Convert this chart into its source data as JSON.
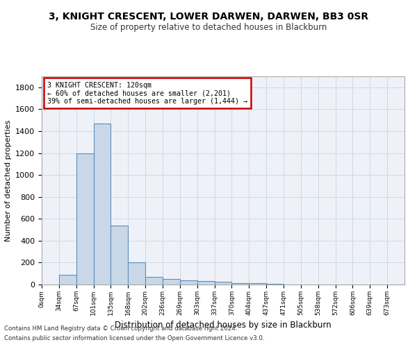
{
  "title": "3, KNIGHT CRESCENT, LOWER DARWEN, DARWEN, BB3 0SR",
  "subtitle": "Size of property relative to detached houses in Blackburn",
  "xlabel": "Distribution of detached houses by size in Blackburn",
  "ylabel": "Number of detached properties",
  "bin_labels": [
    "0sqm",
    "34sqm",
    "67sqm",
    "101sqm",
    "135sqm",
    "168sqm",
    "202sqm",
    "236sqm",
    "269sqm",
    "303sqm",
    "337sqm",
    "370sqm",
    "404sqm",
    "437sqm",
    "471sqm",
    "505sqm",
    "538sqm",
    "572sqm",
    "606sqm",
    "639sqm",
    "673sqm"
  ],
  "bar_values": [
    0,
    90,
    1200,
    1470,
    540,
    200,
    70,
    50,
    40,
    30,
    25,
    15,
    10,
    5,
    3,
    2,
    1,
    1,
    1,
    1,
    0
  ],
  "bar_color": "#c8d8e8",
  "bar_edge_color": "#5b8db8",
  "grid_color": "#d0d8e8",
  "bg_color": "#eef2f8",
  "annotation_text": "3 KNIGHT CRESCENT: 120sqm\n← 60% of detached houses are smaller (2,201)\n39% of semi-detached houses are larger (1,444) →",
  "annotation_box_color": "#ffffff",
  "annotation_box_edge": "#cc0000",
  "bin_width": 33.5,
  "ylim": [
    0,
    1900
  ],
  "yticks": [
    0,
    200,
    400,
    600,
    800,
    1000,
    1200,
    1400,
    1600,
    1800
  ],
  "footnote1": "Contains HM Land Registry data © Crown copyright and database right 2024.",
  "footnote2": "Contains public sector information licensed under the Open Government Licence v3.0."
}
